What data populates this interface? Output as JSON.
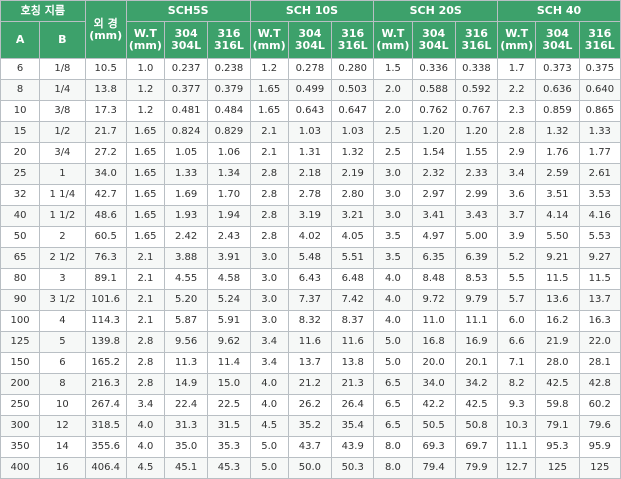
{
  "header": {
    "nominal": "호칭 지름",
    "col_a": "A",
    "col_b": "B",
    "od_line1": "외 경",
    "od_line2": "(mm)",
    "groups": [
      "SCH5S",
      "SCH 10S",
      "SCH 20S",
      "SCH 40"
    ],
    "wt_line1": "W.T",
    "wt_line2": "(mm)",
    "m304_line1": "304",
    "m304_line2": "304L",
    "m316_line1": "316",
    "m316_line2": "316L"
  },
  "rows": [
    [
      "6",
      "1/8",
      "10.5",
      "1.0",
      "0.237",
      "0.238",
      "1.2",
      "0.278",
      "0.280",
      "1.5",
      "0.336",
      "0.338",
      "1.7",
      "0.373",
      "0.375"
    ],
    [
      "8",
      "1/4",
      "13.8",
      "1.2",
      "0.377",
      "0.379",
      "1.65",
      "0.499",
      "0.503",
      "2.0",
      "0.588",
      "0.592",
      "2.2",
      "0.636",
      "0.640"
    ],
    [
      "10",
      "3/8",
      "17.3",
      "1.2",
      "0.481",
      "0.484",
      "1.65",
      "0.643",
      "0.647",
      "2.0",
      "0.762",
      "0.767",
      "2.3",
      "0.859",
      "0.865"
    ],
    [
      "15",
      "1/2",
      "21.7",
      "1.65",
      "0.824",
      "0.829",
      "2.1",
      "1.03",
      "1.03",
      "2.5",
      "1.20",
      "1.20",
      "2.8",
      "1.32",
      "1.33"
    ],
    [
      "20",
      "3/4",
      "27.2",
      "1.65",
      "1.05",
      "1.06",
      "2.1",
      "1.31",
      "1.32",
      "2.5",
      "1.54",
      "1.55",
      "2.9",
      "1.76",
      "1.77"
    ],
    [
      "25",
      "1",
      "34.0",
      "1.65",
      "1.33",
      "1.34",
      "2.8",
      "2.18",
      "2.19",
      "3.0",
      "2.32",
      "2.33",
      "3.4",
      "2.59",
      "2.61"
    ],
    [
      "32",
      "1 1/4",
      "42.7",
      "1.65",
      "1.69",
      "1.70",
      "2.8",
      "2.78",
      "2.80",
      "3.0",
      "2.97",
      "2.99",
      "3.6",
      "3.51",
      "3.53"
    ],
    [
      "40",
      "1 1/2",
      "48.6",
      "1.65",
      "1.93",
      "1.94",
      "2.8",
      "3.19",
      "3.21",
      "3.0",
      "3.41",
      "3.43",
      "3.7",
      "4.14",
      "4.16"
    ],
    [
      "50",
      "2",
      "60.5",
      "1.65",
      "2.42",
      "2.43",
      "2.8",
      "4.02",
      "4.05",
      "3.5",
      "4.97",
      "5.00",
      "3.9",
      "5.50",
      "5.53"
    ],
    [
      "65",
      "2 1/2",
      "76.3",
      "2.1",
      "3.88",
      "3.91",
      "3.0",
      "5.48",
      "5.51",
      "3.5",
      "6.35",
      "6.39",
      "5.2",
      "9.21",
      "9.27"
    ],
    [
      "80",
      "3",
      "89.1",
      "2.1",
      "4.55",
      "4.58",
      "3.0",
      "6.43",
      "6.48",
      "4.0",
      "8.48",
      "8.53",
      "5.5",
      "11.5",
      "11.5"
    ],
    [
      "90",
      "3 1/2",
      "101.6",
      "2.1",
      "5.20",
      "5.24",
      "3.0",
      "7.37",
      "7.42",
      "4.0",
      "9.72",
      "9.79",
      "5.7",
      "13.6",
      "13.7"
    ],
    [
      "100",
      "4",
      "114.3",
      "2.1",
      "5.87",
      "5.91",
      "3.0",
      "8.32",
      "8.37",
      "4.0",
      "11.0",
      "11.1",
      "6.0",
      "16.2",
      "16.3"
    ],
    [
      "125",
      "5",
      "139.8",
      "2.8",
      "9.56",
      "9.62",
      "3.4",
      "11.6",
      "11.6",
      "5.0",
      "16.8",
      "16.9",
      "6.6",
      "21.9",
      "22.0"
    ],
    [
      "150",
      "6",
      "165.2",
      "2.8",
      "11.3",
      "11.4",
      "3.4",
      "13.7",
      "13.8",
      "5.0",
      "20.0",
      "20.1",
      "7.1",
      "28.0",
      "28.1"
    ],
    [
      "200",
      "8",
      "216.3",
      "2.8",
      "14.9",
      "15.0",
      "4.0",
      "21.2",
      "21.3",
      "6.5",
      "34.0",
      "34.2",
      "8.2",
      "42.5",
      "42.8"
    ],
    [
      "250",
      "10",
      "267.4",
      "3.4",
      "22.4",
      "22.5",
      "4.0",
      "26.2",
      "26.4",
      "6.5",
      "42.2",
      "42.5",
      "9.3",
      "59.8",
      "60.2"
    ],
    [
      "300",
      "12",
      "318.5",
      "4.0",
      "31.3",
      "31.5",
      "4.5",
      "35.2",
      "35.4",
      "6.5",
      "50.5",
      "50.8",
      "10.3",
      "79.1",
      "79.6"
    ],
    [
      "350",
      "14",
      "355.6",
      "4.0",
      "35.0",
      "35.3",
      "5.0",
      "43.7",
      "43.9",
      "8.0",
      "69.3",
      "69.7",
      "11.1",
      "95.3",
      "95.9"
    ],
    [
      "400",
      "16",
      "406.4",
      "4.5",
      "45.1",
      "45.3",
      "5.0",
      "50.0",
      "50.3",
      "8.0",
      "79.4",
      "79.9",
      "12.7",
      "125",
      "125"
    ]
  ]
}
